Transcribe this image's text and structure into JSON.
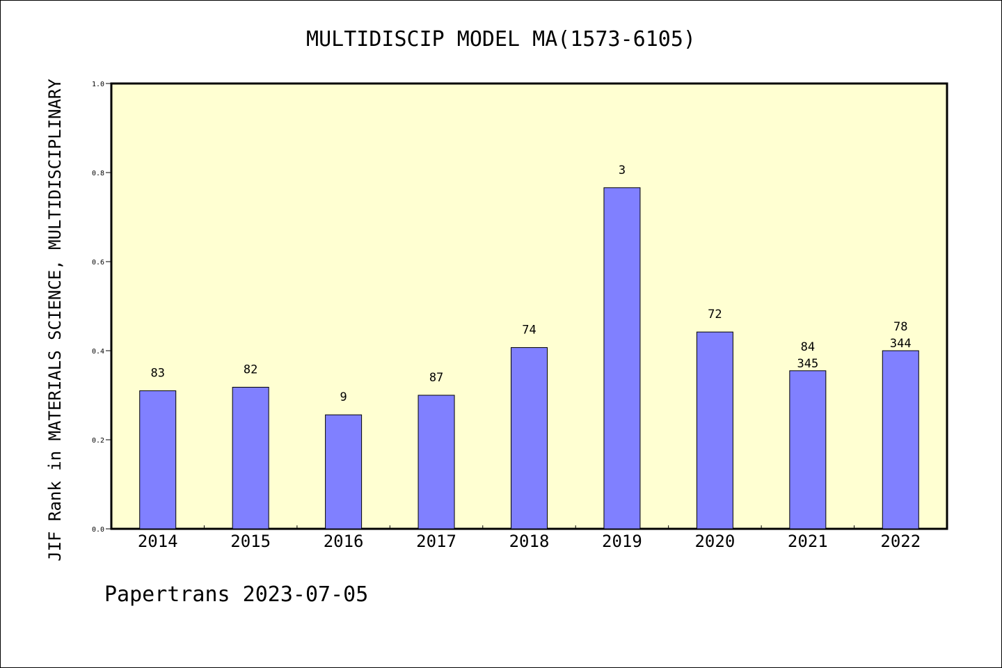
{
  "chart_data": {
    "type": "bar",
    "title": "MULTIDISCIP MODEL MA(1573-6105)",
    "ylabel": "JIF Rank in MATERIALS SCIENCE, MULTIDISCIPLINARY",
    "xlabel": "",
    "ylim": [
      0,
      1.0
    ],
    "yticks": [
      "0.0",
      "0.2",
      "0.4",
      "0.6",
      "0.8",
      "1.0"
    ],
    "categories": [
      "2014",
      "2015",
      "2016",
      "2017",
      "2018",
      "2019",
      "2020",
      "2021",
      "2022"
    ],
    "values": [
      0.31,
      0.318,
      0.256,
      0.3,
      0.407,
      0.766,
      0.442,
      0.355,
      0.4
    ],
    "labels_top": [
      "83",
      "82",
      "9",
      "87",
      "74",
      "3",
      "72",
      "84",
      "78"
    ],
    "labels_bottom": [
      "",
      "",
      "",
      "",
      "",
      "",
      "",
      "345",
      "344"
    ],
    "grid": false,
    "legend": "none",
    "colors": {
      "bar": "#8080ff",
      "plot_background": "#ffffd2"
    }
  },
  "footer": "Papertrans 2023-07-05"
}
